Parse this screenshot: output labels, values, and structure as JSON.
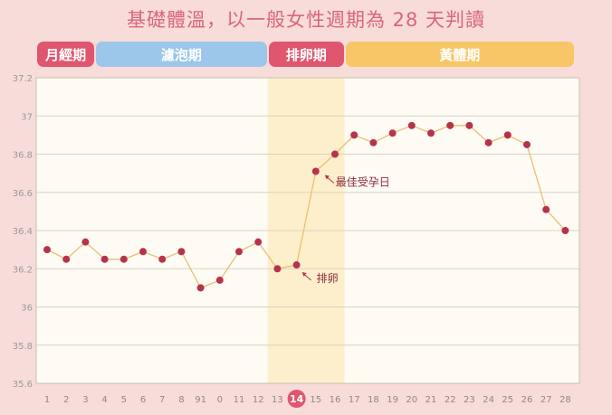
{
  "title": "基礎體溫，以一般女性週期為 28 天判讀",
  "phases": [
    {
      "label": "月經期",
      "start_day": 1,
      "end_day": 3,
      "color": "#e0566e"
    },
    {
      "label": "濾泡期",
      "start_day": 4,
      "end_day": 12,
      "color": "#9cc6ea"
    },
    {
      "label": "排卵期",
      "start_day": 13,
      "end_day": 16,
      "color": "#e0566e"
    },
    {
      "label": "黃體期",
      "start_day": 17,
      "end_day": 28,
      "color": "#f6c667"
    }
  ],
  "colors": {
    "background": "#f8dcd9",
    "plot_background": "#fdfbf4",
    "line": "#e8c070",
    "marker": "#b8324c",
    "highlight_band": "#fdefcc",
    "title": "#d9667a",
    "highlight_day": "#e0566e"
  },
  "chart_data": {
    "type": "line",
    "title": "基礎體溫，以一般女性週期為 28 天判讀",
    "categories": [
      "1",
      "2",
      "3",
      "4",
      "5",
      "6",
      "7",
      "8",
      "91",
      "0",
      "11",
      "12",
      "13",
      "14",
      "15",
      "16",
      "17",
      "18",
      "19",
      "20",
      "21",
      "22",
      "23",
      "24",
      "25",
      "26",
      "27",
      "28"
    ],
    "values": [
      36.3,
      36.25,
      36.34,
      36.25,
      36.25,
      36.29,
      36.25,
      36.29,
      36.1,
      36.14,
      36.29,
      36.34,
      36.2,
      36.22,
      36.71,
      36.8,
      36.9,
      36.86,
      36.91,
      36.95,
      36.91,
      36.95,
      36.95,
      36.86,
      36.9,
      36.85,
      36.51,
      36.4
    ],
    "ylim": [
      35.6,
      37.2
    ],
    "yticks": [
      "35.6",
      "35.8",
      "36",
      "36.2",
      "36.4",
      "36.6",
      "36.8",
      "37",
      "37.2"
    ],
    "grid": true,
    "highlight_band_days": [
      13,
      16
    ],
    "highlighted_category": "14",
    "annotations": [
      {
        "text": "最佳受孕日",
        "day": 15
      },
      {
        "text": "排卵",
        "day": 14
      }
    ]
  }
}
